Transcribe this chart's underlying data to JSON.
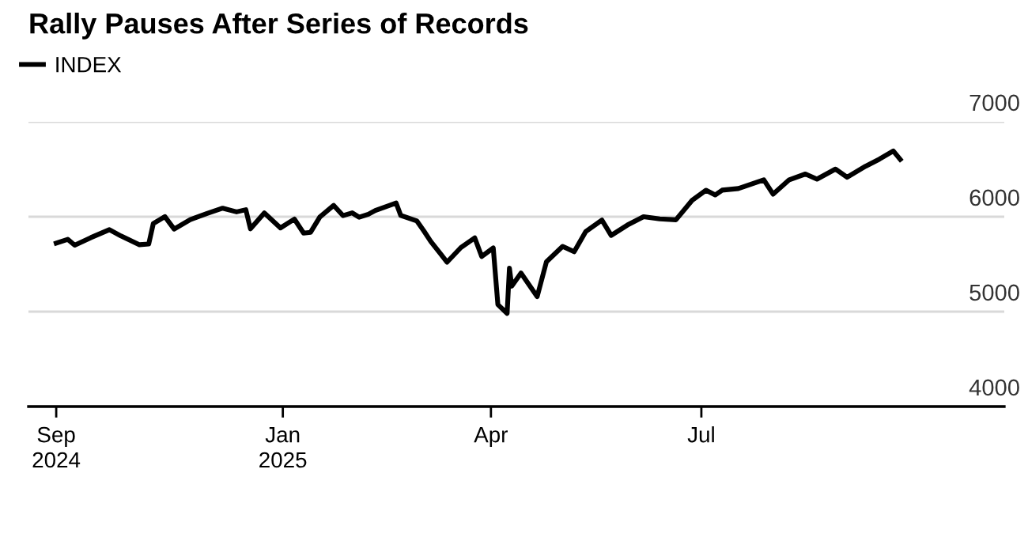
{
  "chart_data": {
    "type": "line",
    "title": "Rally Pauses After Series of Records",
    "x": [
      "2024-09-25",
      "2024-09-30",
      "2024-10-03",
      "2024-10-10",
      "2024-10-18",
      "2024-10-23",
      "2024-10-31",
      "2024-11-04",
      "2024-11-06",
      "2024-11-11",
      "2024-11-15",
      "2024-11-22",
      "2024-11-29",
      "2024-12-06",
      "2024-12-12",
      "2024-12-16",
      "2024-12-18",
      "2024-12-24",
      "2024-12-31",
      "2025-01-06",
      "2025-01-10",
      "2025-01-13",
      "2025-01-17",
      "2025-01-23",
      "2025-01-27",
      "2025-01-31",
      "2025-02-03",
      "2025-02-07",
      "2025-02-10",
      "2025-02-19",
      "2025-02-21",
      "2025-02-28",
      "2025-03-03",
      "2025-03-06",
      "2025-03-10",
      "2025-03-13",
      "2025-03-19",
      "2025-03-25",
      "2025-03-28",
      "2025-04-02",
      "2025-04-04",
      "2025-04-08",
      "2025-04-09",
      "2025-04-10",
      "2025-04-14",
      "2025-04-21",
      "2025-04-25",
      "2025-05-02",
      "2025-05-07",
      "2025-05-12",
      "2025-05-19",
      "2025-05-23",
      "2025-05-30",
      "2025-06-06",
      "2025-06-13",
      "2025-06-20",
      "2025-06-27",
      "2025-07-03",
      "2025-07-07",
      "2025-07-10",
      "2025-07-17",
      "2025-07-28",
      "2025-08-01",
      "2025-08-08",
      "2025-08-15",
      "2025-08-20",
      "2025-08-28",
      "2025-09-02",
      "2025-09-10",
      "2025-09-16",
      "2025-09-22",
      "2025-09-25"
    ],
    "series": [
      {
        "name": "INDEX",
        "color": "#000000",
        "values": [
          5722,
          5762,
          5700,
          5780,
          5864,
          5797,
          5705,
          5712,
          5929,
          6001,
          5870,
          5969,
          6032,
          6090,
          6051,
          6074,
          5872,
          6040,
          5882,
          5975,
          5827,
          5836,
          5997,
          6119,
          6012,
          6041,
          5995,
          6026,
          6066,
          6144,
          6013,
          5955,
          5850,
          5739,
          5615,
          5521,
          5675,
          5777,
          5581,
          5671,
          5074,
          4982,
          5457,
          5268,
          5406,
          5158,
          5525,
          5687,
          5631,
          5844,
          5964,
          5803,
          5912,
          6000,
          5977,
          5968,
          6173,
          6279,
          6230,
          6280,
          6297,
          6389,
          6238,
          6389,
          6450,
          6396,
          6502,
          6416,
          6532,
          6607,
          6693,
          6604
        ]
      }
    ],
    "xlim": [
      "2024-09-13",
      "2025-11-09"
    ],
    "xticks": [
      {
        "value": "2024-09-25",
        "label": "Sep\n2024"
      },
      {
        "value": "2025-01-01",
        "label": "Jan\n2025"
      },
      {
        "value": "2025-04-01",
        "label": "Apr"
      },
      {
        "value": "2025-07-01",
        "label": "Jul"
      }
    ],
    "ylim": [
      4000,
      7000
    ],
    "yticks": [
      4000,
      5000,
      6000,
      7000
    ],
    "grid": "y",
    "legend": "top left",
    "line_style": "solid",
    "marker": "none"
  }
}
